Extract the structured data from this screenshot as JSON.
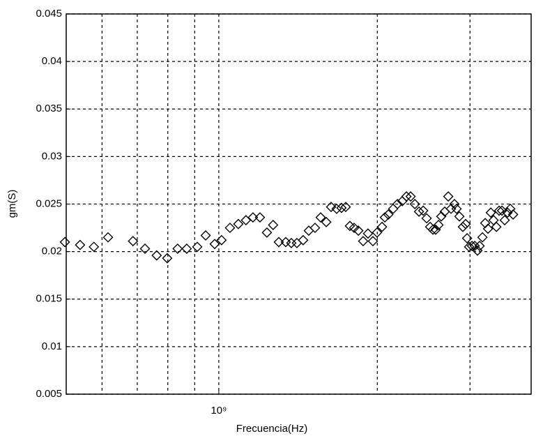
{
  "chart_data": {
    "type": "scatter",
    "xlabel": "Frecuencia(Hz)",
    "ylabel": "gm(S)",
    "xscale": "log",
    "xlim": [
      513000000,
      3920000000
    ],
    "xticks": [
      {
        "value": 1000000000,
        "label": "10⁹"
      }
    ],
    "xgrid_minor": [
      600000000,
      700000000,
      800000000,
      900000000,
      2000000000,
      3000000000
    ],
    "ylim": [
      0.005,
      0.045
    ],
    "yticks": [
      0.005,
      0.01,
      0.015,
      0.02,
      0.025,
      0.03,
      0.035,
      0.04,
      0.045
    ],
    "grid": true,
    "marker": "diamond",
    "color": "#000000",
    "x": [
      510000000,
      545000000,
      579000000,
      616000000,
      687000000,
      724000000,
      762000000,
      798000000,
      835000000,
      869000000,
      910000000,
      944000000,
      982000000,
      1012000000,
      1050000000,
      1089000000,
      1126000000,
      1161000000,
      1197000000,
      1234000000,
      1268000000,
      1300000000,
      1340000000,
      1373000000,
      1407000000,
      1446000000,
      1482000000,
      1523000000,
      1561000000,
      1600000000,
      1634000000,
      1674000000,
      1710000000,
      1742000000,
      1774000000,
      1807000000,
      1841000000,
      1880000000,
      1920000000,
      1962000000,
      1998000000,
      2042000000,
      2067000000,
      2099000000,
      2144000000,
      2184000000,
      2231000000,
      2272000000,
      2314000000,
      2357000000,
      2400000000,
      2445000000,
      2482000000,
      2520000000,
      2551000000,
      2582000000,
      2614000000,
      2646000000,
      2686000000,
      2728000000,
      2761000000,
      2803000000,
      2829000000,
      2864000000,
      2908000000,
      2944000000,
      2962000000,
      2989000000,
      3026000000,
      3063000000,
      3100000000,
      3129000000,
      3168000000,
      3206000000,
      3246000000,
      3286000000,
      3326000000,
      3367000000,
      3408000000,
      3450000000,
      3492000000,
      3535000000,
      3578000000,
      3622000000
    ],
    "values": [
      0.021,
      0.0207,
      0.0205,
      0.0215,
      0.0211,
      0.0203,
      0.0196,
      0.0193,
      0.0203,
      0.0203,
      0.0205,
      0.0217,
      0.0208,
      0.0212,
      0.0225,
      0.0229,
      0.0233,
      0.0236,
      0.0236,
      0.022,
      0.0228,
      0.021,
      0.021,
      0.0209,
      0.0209,
      0.0212,
      0.0222,
      0.0225,
      0.0236,
      0.0231,
      0.0247,
      0.0245,
      0.0246,
      0.0247,
      0.0227,
      0.0225,
      0.0222,
      0.0211,
      0.0219,
      0.0211,
      0.022,
      0.0226,
      0.0236,
      0.0239,
      0.0245,
      0.025,
      0.0253,
      0.0258,
      0.0258,
      0.025,
      0.0242,
      0.0243,
      0.0235,
      0.0226,
      0.0223,
      0.0223,
      0.0228,
      0.0237,
      0.0242,
      0.0258,
      0.0245,
      0.025,
      0.0245,
      0.0237,
      0.0226,
      0.0229,
      0.0214,
      0.0205,
      0.0206,
      0.0206,
      0.0201,
      0.0206,
      0.0215,
      0.023,
      0.0224,
      0.0241,
      0.0233,
      0.0226,
      0.0243,
      0.0243,
      0.0233,
      0.0241,
      0.0245,
      0.0239
    ]
  }
}
